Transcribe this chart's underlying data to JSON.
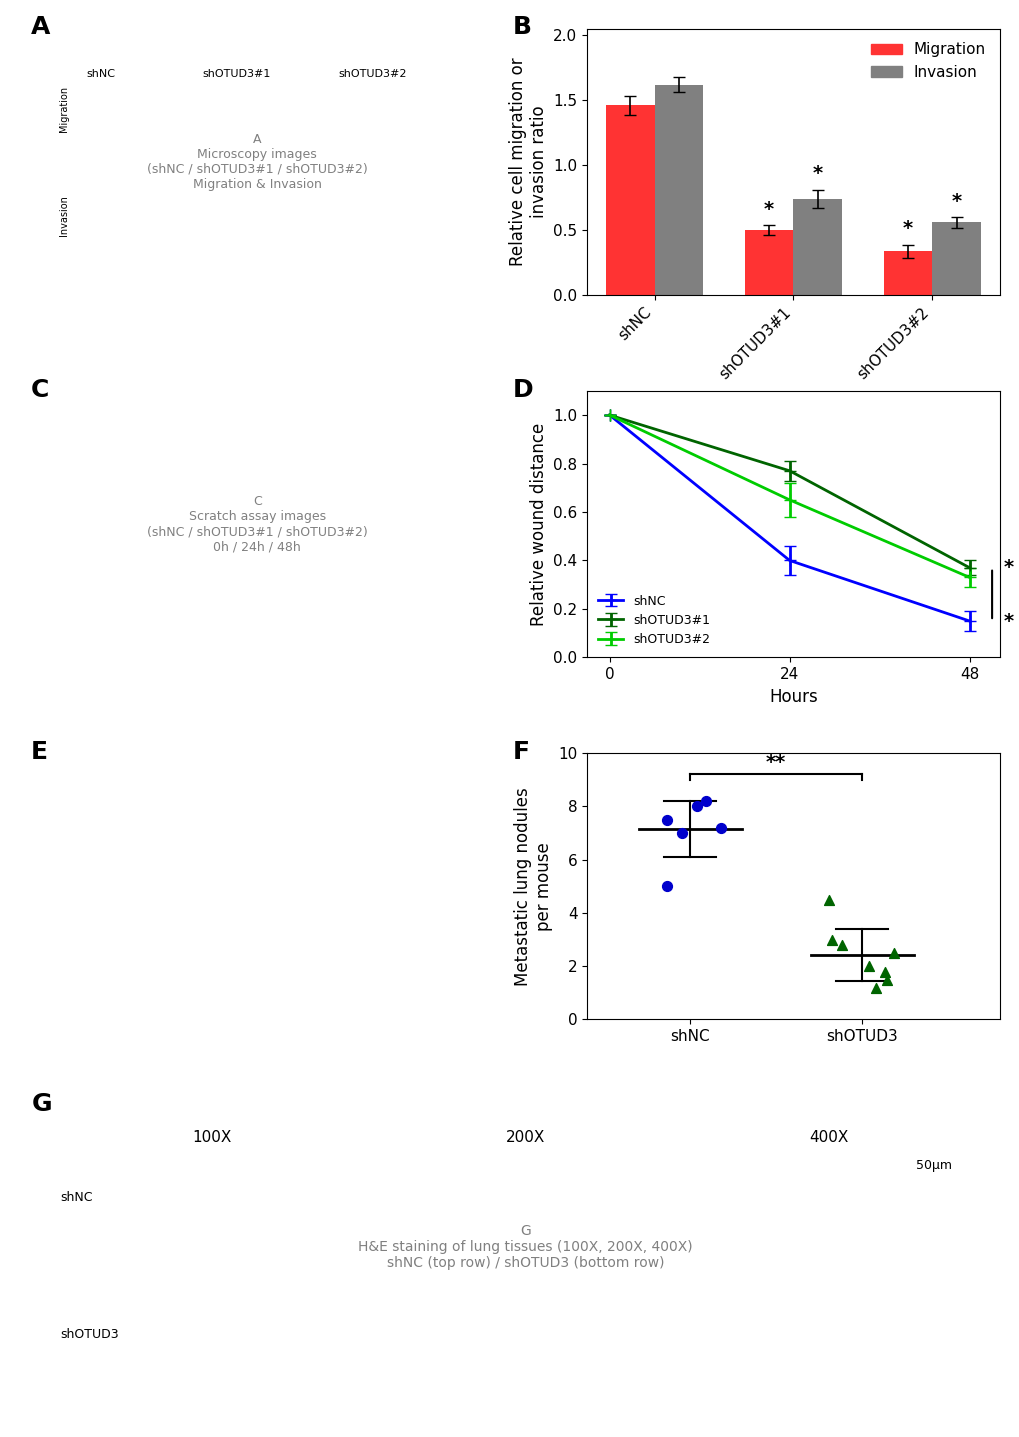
{
  "panel_B": {
    "categories": [
      "shNC",
      "shOTUD3#1",
      "shOTUD3#2"
    ],
    "migration_values": [
      1.46,
      0.5,
      0.34
    ],
    "invasion_values": [
      1.62,
      0.74,
      0.56
    ],
    "migration_errors": [
      0.07,
      0.04,
      0.05
    ],
    "invasion_errors": [
      0.06,
      0.07,
      0.04
    ],
    "migration_color": "#FF3333",
    "invasion_color": "#808080",
    "ylabel": "Relative cell migration or\ninvasion ratio",
    "ylim": [
      0,
      2.0
    ],
    "yticks": [
      0.0,
      0.5,
      1.0,
      1.5,
      2.0
    ],
    "significance_mig": [
      "",
      "*",
      "*"
    ],
    "significance_inv": [
      "",
      "*",
      "*"
    ]
  },
  "panel_D": {
    "hours": [
      0,
      24,
      48
    ],
    "shNC_values": [
      1.0,
      0.4,
      0.15
    ],
    "shNC_errors": [
      0.0,
      0.06,
      0.04
    ],
    "shOTUD3_1_values": [
      1.0,
      0.77,
      0.37
    ],
    "shOTUD3_1_errors": [
      0.0,
      0.04,
      0.03
    ],
    "shOTUD3_2_values": [
      1.0,
      0.65,
      0.33
    ],
    "shOTUD3_2_errors": [
      0.0,
      0.07,
      0.04
    ],
    "shNC_color": "#0000FF",
    "shOTUD3_1_color": "#006400",
    "shOTUD3_2_color": "#00CC00",
    "ylabel": "Relative wound distance",
    "xlabel": "Hours",
    "ylim": [
      0.0,
      1.1
    ],
    "yticks": [
      0.0,
      0.2,
      0.4,
      0.6,
      0.8,
      1.0
    ],
    "xticks": [
      0,
      24,
      48
    ]
  },
  "panel_F": {
    "shNC_points": [
      7.0,
      7.2,
      8.2,
      8.0,
      7.5,
      5.0
    ],
    "shOTUD3_points": [
      3.0,
      1.5,
      2.0,
      1.2,
      4.5,
      2.5,
      1.8,
      2.8
    ],
    "shNC_mean": 7.0,
    "shOTUD3_mean": 2.5,
    "shNC_sd": 1.0,
    "shOTUD3_sd": 1.0,
    "shNC_color": "#0000CC",
    "shOTUD3_color": "#006400",
    "ylabel": "Metastatic lung nodules\nper mouse",
    "ylim": [
      0,
      10
    ],
    "yticks": [
      0,
      2,
      4,
      6,
      8,
      10
    ]
  },
  "bg_color": "#ffffff",
  "panel_labels": [
    "A",
    "B",
    "C",
    "D",
    "E",
    "F",
    "G"
  ],
  "label_fontsize": 18,
  "tick_fontsize": 11,
  "axis_label_fontsize": 12
}
